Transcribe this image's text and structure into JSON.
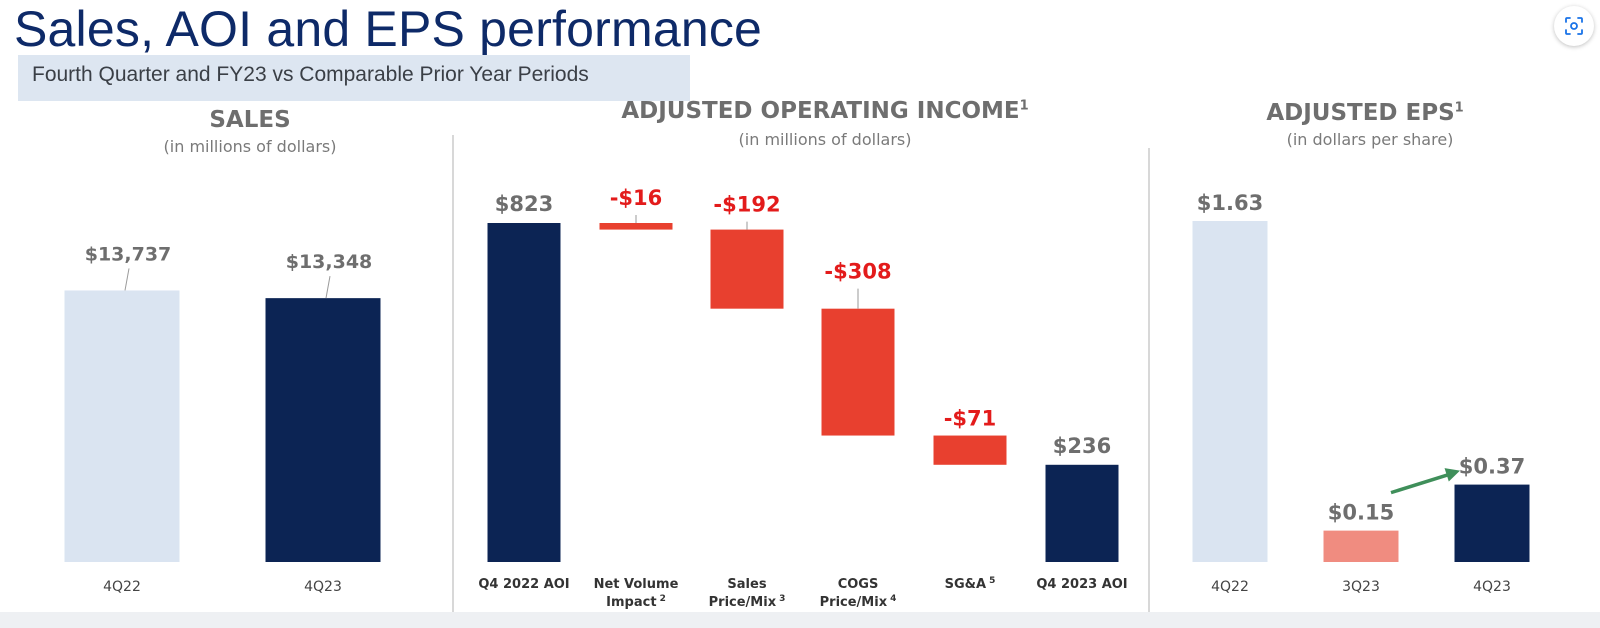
{
  "page": {
    "title": "Sales, AOI and EPS performance",
    "subtitle": "Fourth Quarter and FY23 vs Comparable Prior Year Periods"
  },
  "panels": {
    "sales": {
      "title": "SALES",
      "subtitle": "(in millions of dollars)"
    },
    "aoi": {
      "title": "ADJUSTED OPERATING INCOME",
      "title_sup": "1",
      "subtitle": "(in millions of dollars)"
    },
    "eps": {
      "title": "ADJUSTED EPS",
      "title_sup": "1",
      "subtitle": "(in dollars per share)"
    }
  },
  "toolbar": {
    "lens_icon": "visual-search-icon"
  },
  "colors": {
    "navy": "#0c2454",
    "light_blue": "#dae4f1",
    "red": "#e8402f",
    "salmon": "#f08c80",
    "red_label": "#e31b1b",
    "gray_label": "#6e6e6e",
    "arrow_green": "#3f8f5a"
  },
  "chart_data": [
    {
      "type": "bar",
      "title": "SALES",
      "subtitle": "(in millions of dollars)",
      "categories": [
        "4Q22",
        "4Q23"
      ],
      "values": [
        13737,
        13348
      ],
      "labels": [
        "$13,737",
        "$13,348"
      ],
      "colors": [
        "#dae4f1",
        "#0c2454"
      ],
      "ylim": [
        0,
        21500
      ]
    },
    {
      "type": "waterfall",
      "title": "ADJUSTED OPERATING INCOME",
      "subtitle": "(in millions of dollars)",
      "categories": [
        {
          "line1": "Q4 2022 AOI",
          "line2": "",
          "sup": ""
        },
        {
          "line1": "Net Volume",
          "line2": "Impact",
          "sup": "2"
        },
        {
          "line1": "Sales",
          "line2": "Price/Mix",
          "sup": "3"
        },
        {
          "line1": "COGS",
          "line2": "Price/Mix",
          "sup": "4"
        },
        {
          "line1": "SG&A",
          "line2": "",
          "sup": "5"
        },
        {
          "line1": "Q4 2023 AOI",
          "line2": "",
          "sup": ""
        }
      ],
      "values": [
        823,
        -16,
        -192,
        -308,
        -71,
        236
      ],
      "kinds": [
        "total",
        "delta",
        "delta",
        "delta",
        "delta",
        "total"
      ],
      "labels": [
        "$823",
        "-$16",
        "-$192",
        "-$308",
        "-$71",
        "$236"
      ],
      "ylim": [
        0,
        823
      ]
    },
    {
      "type": "bar",
      "title": "ADJUSTED EPS",
      "subtitle": "(in dollars per share)",
      "categories": [
        "4Q22",
        "3Q23",
        "4Q23"
      ],
      "values": [
        1.63,
        0.15,
        0.37
      ],
      "labels": [
        "$1.63",
        "$0.15",
        "$0.37"
      ],
      "colors": [
        "#dae4f1",
        "#f08c80",
        "#0c2454"
      ],
      "ylim": [
        0,
        1.63
      ],
      "annotation": "arrow from 3Q23 to 4Q23"
    }
  ]
}
